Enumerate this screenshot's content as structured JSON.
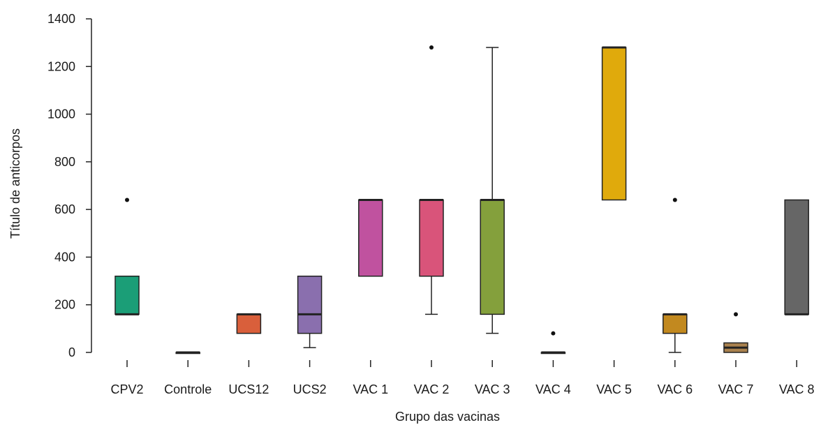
{
  "chart_data": {
    "type": "box",
    "title": "",
    "xlabel": "Grupo das vacinas",
    "ylabel": "Título de anticorpos",
    "ylim": [
      0,
      1400
    ],
    "yticks": [
      0,
      200,
      400,
      600,
      800,
      1000,
      1200,
      1400
    ],
    "grid": false,
    "legend": "none",
    "boxes": [
      {
        "category": "CPV2",
        "color": "#1b9e77",
        "whisker_low": 160,
        "q1": 160,
        "median": 160,
        "q3": 320,
        "whisker_high": 320,
        "outliers": [
          640
        ]
      },
      {
        "category": "Controle",
        "color": "#999999",
        "whisker_low": 0,
        "q1": 0,
        "median": 0,
        "q3": 0,
        "whisker_high": 0,
        "outliers": []
      },
      {
        "category": "UCS12",
        "color": "#d95f3b",
        "whisker_low": 80,
        "q1": 80,
        "median": 160,
        "q3": 160,
        "whisker_high": 160,
        "outliers": []
      },
      {
        "category": "UCS2",
        "color": "#8a6fae",
        "whisker_low": 20,
        "q1": 80,
        "median": 160,
        "q3": 320,
        "whisker_high": 320,
        "outliers": []
      },
      {
        "category": "VAC 1",
        "color": "#c0529f",
        "whisker_low": 320,
        "q1": 320,
        "median": 640,
        "q3": 640,
        "whisker_high": 640,
        "outliers": []
      },
      {
        "category": "VAC 2",
        "color": "#d9547a",
        "whisker_low": 160,
        "q1": 320,
        "median": 640,
        "q3": 640,
        "whisker_high": 640,
        "outliers": [
          1280
        ]
      },
      {
        "category": "VAC 3",
        "color": "#84a03c",
        "whisker_low": 80,
        "q1": 160,
        "median": 640,
        "q3": 640,
        "whisker_high": 1280,
        "outliers": []
      },
      {
        "category": "VAC 4",
        "color": "#999999",
        "whisker_low": 0,
        "q1": 0,
        "median": 0,
        "q3": 0,
        "whisker_high": 0,
        "outliers": [
          80
        ]
      },
      {
        "category": "VAC 5",
        "color": "#e0aa0c",
        "whisker_low": 640,
        "q1": 640,
        "median": 1280,
        "q3": 1280,
        "whisker_high": 1280,
        "outliers": []
      },
      {
        "category": "VAC 6",
        "color": "#c2891f",
        "whisker_low": 0,
        "q1": 80,
        "median": 160,
        "q3": 160,
        "whisker_high": 160,
        "outliers": [
          640
        ]
      },
      {
        "category": "VAC 7",
        "color": "#a9814e",
        "whisker_low": 0,
        "q1": 0,
        "median": 20,
        "q3": 40,
        "whisker_high": 40,
        "outliers": [
          160
        ]
      },
      {
        "category": "VAC 8",
        "color": "#666666",
        "whisker_low": 160,
        "q1": 160,
        "median": 160,
        "q3": 640,
        "whisker_high": 640,
        "outliers": []
      }
    ]
  }
}
